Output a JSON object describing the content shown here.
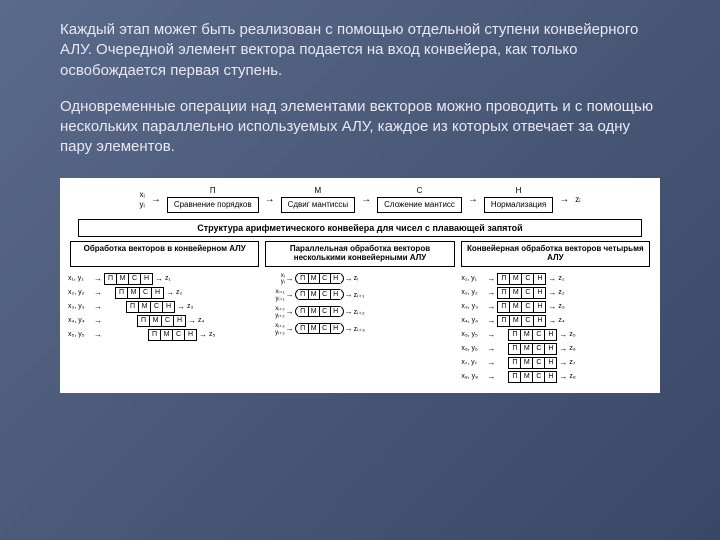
{
  "paragraph1": "Каждый этап может быть реализован с помощью отдельной ступени конвейерного АЛУ. Очередной элемент вектора подается на вход конвейера, как только освобождается первая ступень.",
  "paragraph2": "Одновременные операции над элементами векторов можно проводить и с помощью нескольких параллельно используемых АЛУ, каждое из которых отвечает за одну пару элементов.",
  "pipeline": {
    "input_x": "xᵢ",
    "input_y": "yᵢ",
    "output": "zᵢ",
    "stages": [
      {
        "code": "П",
        "label": "Сравнение порядков"
      },
      {
        "code": "М",
        "label": "Сдвиг мантиссы"
      },
      {
        "code": "С",
        "label": "Сложение мантисс"
      },
      {
        "code": "Н",
        "label": "Нормализация"
      }
    ]
  },
  "main_title": "Структура арифметического конвейера для чисел с плавающей запятой",
  "columns": [
    {
      "title": "Обработка векторов в конвейерном АЛУ",
      "rows": [
        {
          "in": "x₁, y₁",
          "offset": 0,
          "out": "z₁"
        },
        {
          "in": "x₂, y₂",
          "offset": 1,
          "out": "z₂"
        },
        {
          "in": "x₃, y₃",
          "offset": 2,
          "out": "z₃"
        },
        {
          "in": "x₄, y₄",
          "offset": 3,
          "out": "z₄"
        },
        {
          "in": "x₅, y₅",
          "offset": 4,
          "out": "z₅"
        }
      ]
    },
    {
      "title": "Параллельная обработка векторов несколькими конвейерными АЛУ",
      "rows": [
        {
          "in_x": "xᵢ",
          "in_y": "yᵢ",
          "out": "zᵢ"
        },
        {
          "in_x": "xᵢ₊₁",
          "in_y": "yᵢ₊₁",
          "out": "zᵢ₊₁"
        },
        {
          "in_x": "xᵢ₊₂",
          "in_y": "yᵢ₊₂",
          "out": "zᵢ₊₂"
        },
        {
          "in_x": "xᵢ₊₃",
          "in_y": "yᵢ₊₃",
          "out": "zᵢ₊₃"
        }
      ]
    },
    {
      "title": "Конвейерная обработка векторов четырьмя АЛУ",
      "rows": [
        {
          "in": "x₁, y₁",
          "offset": 0,
          "out": "z₁"
        },
        {
          "in": "x₂, y₂",
          "offset": 0,
          "out": "z₂"
        },
        {
          "in": "x₃, y₃",
          "offset": 0,
          "out": "z₃"
        },
        {
          "in": "x₄, y₄",
          "offset": 0,
          "out": "z₄"
        },
        {
          "in": "x₅, y₅",
          "offset": 1,
          "out": "z₅"
        },
        {
          "in": "x₆, y₆",
          "offset": 1,
          "out": "z₆"
        },
        {
          "in": "x₇, y₇",
          "offset": 1,
          "out": "z₇"
        },
        {
          "in": "x₈, y₈",
          "offset": 1,
          "out": "z₈"
        }
      ]
    }
  ],
  "cells": [
    "П",
    "М",
    "С",
    "Н"
  ],
  "colors": {
    "bg_start": "#5a6a8a",
    "bg_end": "#3a4868",
    "text": "#e8e8f0",
    "diagram_bg": "#ffffff",
    "border": "#000000"
  }
}
